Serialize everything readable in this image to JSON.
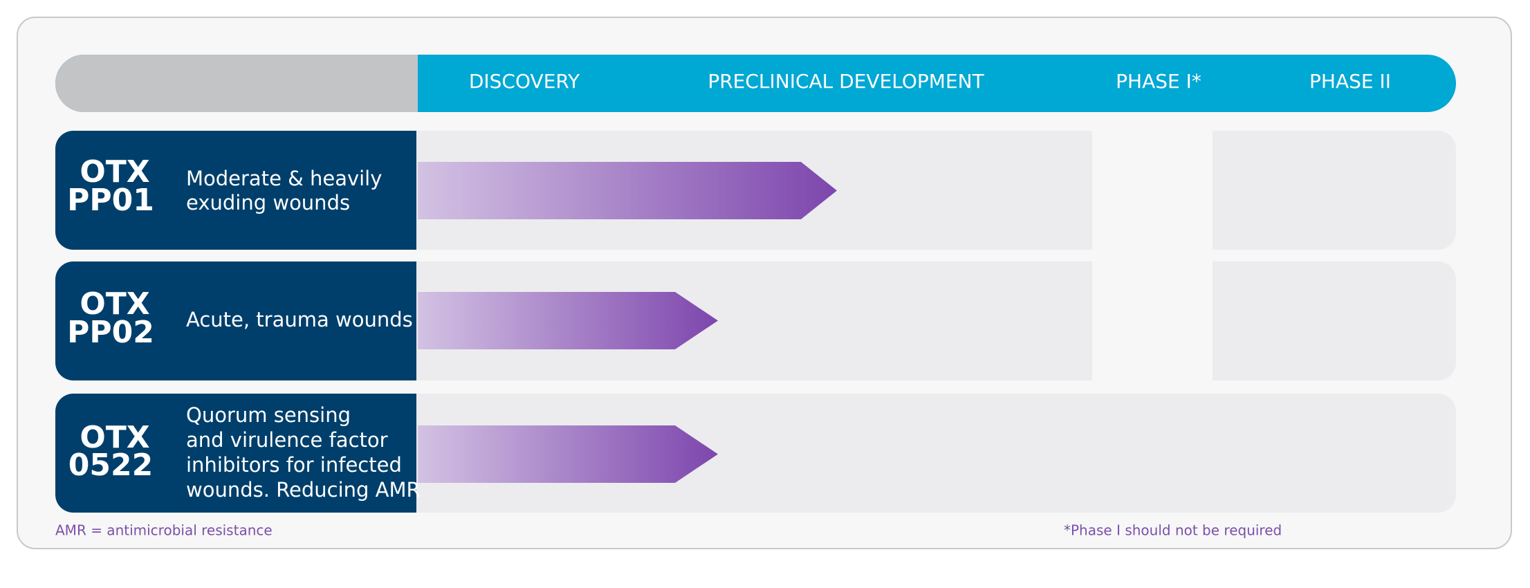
{
  "header": {
    "phases": [
      "DISCOVERY",
      "PRECLINICAL DEVELOPMENT",
      "PHASE I*",
      "PHASE II"
    ]
  },
  "programs": [
    {
      "code_lines": [
        "OTX",
        "PP01"
      ],
      "description_lines": [
        "Moderate & heavily",
        "exuding wounds"
      ]
    },
    {
      "code_lines": [
        "OTX",
        "PP02"
      ],
      "description_lines": [
        "Acute, trauma wounds"
      ]
    },
    {
      "code_lines": [
        "OTX",
        "0522"
      ],
      "description_lines": [
        "Quorum sensing",
        "and virulence factor",
        "inhibitors for infected",
        "wounds. Reducing AMR"
      ]
    }
  ],
  "footnotes": {
    "left": "AMR = antimicrobial resistance",
    "right": "*Phase I should not be required"
  }
}
